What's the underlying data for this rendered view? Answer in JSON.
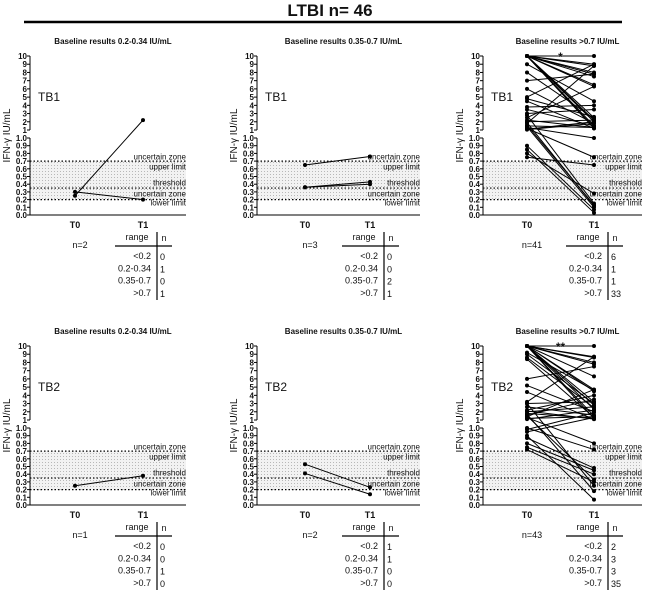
{
  "title": "LTBI n= 46",
  "chart_data": [
    {
      "type": "line",
      "panel_label": "TB1",
      "title": "Baseline results  0.2-0.34 IU/mL",
      "ylabel": "IFN-γ IU/mL",
      "x": [
        "T0",
        "T1"
      ],
      "n_label": "n=2",
      "significance": "",
      "pairs": [
        [
          0.3,
          0.2
        ],
        [
          0.25,
          2.2
        ]
      ],
      "table": {
        "headers": [
          "range",
          "n"
        ],
        "rows": [
          [
            "<0.2",
            "0"
          ],
          [
            "0.2-0.34",
            "1"
          ],
          [
            "0.35-0.7",
            "0"
          ],
          [
            ">0.7",
            "1"
          ]
        ]
      }
    },
    {
      "type": "line",
      "panel_label": "TB1",
      "title": "Baseline results 0.35-0.7 IU/mL",
      "ylabel": "IFN-γ IU/mL",
      "x": [
        "T0",
        "T1"
      ],
      "n_label": "n=3",
      "significance": "",
      "pairs": [
        [
          0.65,
          0.76
        ],
        [
          0.36,
          0.43
        ],
        [
          0.36,
          0.4
        ]
      ],
      "table": {
        "headers": [
          "range",
          "n"
        ],
        "rows": [
          [
            "<0.2",
            "0"
          ],
          [
            "0.2-0.34",
            "0"
          ],
          [
            "0.35-0.7",
            "2"
          ],
          [
            ">0.7",
            "1"
          ]
        ]
      }
    },
    {
      "type": "line",
      "panel_label": "TB1",
      "title": "Baseline results  >0.7 IU/mL",
      "ylabel": "IFN-γ IU/mL",
      "x": [
        "T0",
        "T1"
      ],
      "n_label": "n=41",
      "significance": "*",
      "pairs": [
        [
          10,
          10
        ],
        [
          10,
          9
        ],
        [
          10,
          8.8
        ],
        [
          10,
          8
        ],
        [
          10,
          7.8
        ],
        [
          10,
          7.5
        ],
        [
          10,
          6.5
        ],
        [
          10,
          6.3
        ],
        [
          10,
          2.5
        ],
        [
          10,
          2.2
        ],
        [
          10,
          2
        ],
        [
          10,
          1.5
        ],
        [
          10,
          1.3
        ],
        [
          10,
          1.2
        ],
        [
          9,
          4.5
        ],
        [
          8,
          2.4
        ],
        [
          7,
          7.8
        ],
        [
          6,
          1.8
        ],
        [
          5,
          9
        ],
        [
          4.8,
          2.6
        ],
        [
          4.5,
          1.2
        ],
        [
          3.8,
          4
        ],
        [
          3.5,
          1.5
        ],
        [
          3,
          3.5
        ],
        [
          2.5,
          6.3
        ],
        [
          2.2,
          1.3
        ],
        [
          2,
          2.2
        ],
        [
          1.8,
          8.8
        ],
        [
          1.5,
          1.3
        ],
        [
          1.3,
          1
        ],
        [
          1.2,
          0.75
        ],
        [
          1.1,
          2
        ],
        [
          2.8,
          0.15
        ],
        [
          1.6,
          0.13
        ],
        [
          1.4,
          0.1
        ],
        [
          0.9,
          0.07
        ],
        [
          0.85,
          0.03
        ],
        [
          0.8,
          0.28
        ],
        [
          0.75,
          0.65
        ],
        [
          1.9,
          0.12
        ],
        [
          1.05,
          1.8
        ]
      ],
      "table": {
        "headers": [
          "range",
          "n"
        ],
        "rows": [
          [
            "<0.2",
            "6"
          ],
          [
            "0.2-0.34",
            "1"
          ],
          [
            "0.35-0.7",
            "1"
          ],
          [
            ">0.7",
            "33"
          ]
        ]
      }
    },
    {
      "type": "line",
      "panel_label": "TB2",
      "title": "Baseline results 0.2-0.34 IU/mL",
      "ylabel": "IFN-γ IU/mL",
      "x": [
        "T0",
        "T1"
      ],
      "n_label": "n=1",
      "significance": "",
      "pairs": [
        [
          0.25,
          0.38
        ]
      ],
      "table": {
        "headers": [
          "range",
          "n"
        ],
        "rows": [
          [
            "<0.2",
            "0"
          ],
          [
            "0.2-0.34",
            "0"
          ],
          [
            "0.35-0.7",
            "1"
          ],
          [
            ">0.7",
            "0"
          ]
        ]
      }
    },
    {
      "type": "line",
      "panel_label": "TB2",
      "title": "Baseline results  0.35-0.7 IU/mL",
      "ylabel": "IFN-γ IU/mL",
      "x": [
        "T0",
        "T1"
      ],
      "n_label": "n=2",
      "significance": "",
      "pairs": [
        [
          0.53,
          0.23
        ],
        [
          0.41,
          0.14
        ]
      ],
      "table": {
        "headers": [
          "range",
          "n"
        ],
        "rows": [
          [
            "<0.2",
            "1"
          ],
          [
            "0.2-0.34",
            "1"
          ],
          [
            "0.35-0.7",
            "0"
          ],
          [
            ">0.7",
            "0"
          ]
        ]
      }
    },
    {
      "type": "line",
      "panel_label": "TB2",
      "title": "Baseline results >0.7 IU/mL",
      "ylabel": "IFN-γ IU/mL",
      "x": [
        "T0",
        "T1"
      ],
      "n_label": "n=43",
      "significance": "**",
      "pairs": [
        [
          10,
          10
        ],
        [
          10,
          8.7
        ],
        [
          10,
          8.6
        ],
        [
          10,
          8
        ],
        [
          10,
          7.8
        ],
        [
          10,
          6.3
        ],
        [
          10,
          4.7
        ],
        [
          10,
          4.5
        ],
        [
          10,
          3.2
        ],
        [
          10,
          2.8
        ],
        [
          10,
          2.3
        ],
        [
          10,
          1.5
        ],
        [
          10,
          1.2
        ],
        [
          9.2,
          4.6
        ],
        [
          9,
          3
        ],
        [
          8.6,
          2.5
        ],
        [
          8.4,
          1.3
        ],
        [
          6,
          7.5
        ],
        [
          5.2,
          2
        ],
        [
          4.4,
          1.1
        ],
        [
          3.2,
          8.7
        ],
        [
          3,
          3.2
        ],
        [
          2.6,
          1.6
        ],
        [
          2.2,
          4
        ],
        [
          2,
          2.6
        ],
        [
          1.8,
          1.2
        ],
        [
          1.6,
          3.5
        ],
        [
          1.4,
          4.7
        ],
        [
          1.2,
          1.4
        ],
        [
          1.1,
          2.2
        ],
        [
          2.1,
          1.1
        ],
        [
          1.3,
          0.8
        ],
        [
          1.0,
          0.72
        ],
        [
          0.98,
          1.9
        ],
        [
          0.95,
          1.3
        ],
        [
          0.87,
          0.48
        ],
        [
          0.8,
          0.45
        ],
        [
          0.75,
          0.4
        ],
        [
          1.5,
          0.33
        ],
        [
          0.72,
          0.3
        ],
        [
          3,
          0.25
        ],
        [
          1.7,
          0.18
        ],
        [
          0.9,
          0.07
        ]
      ],
      "table": {
        "headers": [
          "range",
          "n"
        ],
        "rows": [
          [
            "<0.2",
            "2"
          ],
          [
            "0.2-0.34",
            "3"
          ],
          [
            "0.35-0.7",
            "3"
          ],
          [
            ">0.7",
            "35"
          ]
        ]
      }
    }
  ],
  "reference_lines": {
    "uncertain_upper": 0.7,
    "threshold": 0.35,
    "uncertain_lower": 0.2,
    "labels": [
      "uncertain zone",
      "upper limit",
      "threshold",
      "uncertain zone",
      "lower limit"
    ]
  },
  "y_axis": {
    "lower_ticks": [
      "0.0",
      "0.1",
      "0.2",
      "0.3",
      "0.4",
      "0.5",
      "0.6",
      "0.7",
      "0.8",
      "0.9",
      "1.0"
    ],
    "upper_ticks": [
      "1",
      "2",
      "3",
      "4",
      "5",
      "6",
      "7",
      "8",
      "9",
      "10"
    ]
  }
}
